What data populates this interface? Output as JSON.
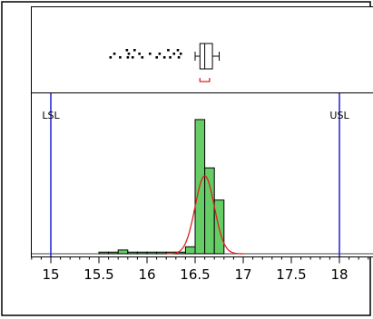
{
  "chart_data": {
    "type": "bar",
    "xlabel": "",
    "ylabel": "",
    "xlim": [
      14.7,
      18.35
    ],
    "x_ticks": [
      15,
      15.5,
      16,
      16.5,
      17,
      17.5,
      18
    ],
    "x_tick_labels": [
      "15",
      "15.5",
      "16",
      "16.5",
      "17",
      "17.5",
      "18"
    ],
    "grid": false,
    "spec_limits": [
      {
        "name": "LSL",
        "value": 15
      },
      {
        "name": "USL",
        "value": 18
      }
    ],
    "histogram": {
      "bin_width": 0.1,
      "bins": [
        {
          "start": 15.5,
          "count": 0.3
        },
        {
          "start": 15.6,
          "count": 0.3
        },
        {
          "start": 15.7,
          "count": 0.7
        },
        {
          "start": 15.8,
          "count": 0.3
        },
        {
          "start": 15.9,
          "count": 0.3
        },
        {
          "start": 16.0,
          "count": 0.3
        },
        {
          "start": 16.1,
          "count": 0.3
        },
        {
          "start": 16.2,
          "count": 0.3
        },
        {
          "start": 16.3,
          "count": 0.3
        },
        {
          "start": 16.4,
          "count": 1.3
        },
        {
          "start": 16.5,
          "count": 25
        },
        {
          "start": 16.6,
          "count": 16
        },
        {
          "start": 16.7,
          "count": 10
        }
      ],
      "ylim": [
        0,
        26
      ],
      "bar_color": "#66cc66"
    },
    "normal_fit": {
      "mean": 16.6,
      "sd": 0.1,
      "peak": 14.5,
      "color": "#e02020"
    },
    "boxplot": {
      "q1": 16.55,
      "median": 16.6,
      "q3": 16.68,
      "whisker_low": 16.5,
      "whisker_high": 16.75,
      "shortest_half": [
        16.55,
        16.65
      ],
      "outliers": [
        {
          "x": 15.62,
          "row": 2
        },
        {
          "x": 15.66,
          "row": 1
        },
        {
          "x": 15.72,
          "row": 2
        },
        {
          "x": 15.79,
          "row": 0
        },
        {
          "x": 15.8,
          "row": 2
        },
        {
          "x": 15.81,
          "row": 1
        },
        {
          "x": 15.85,
          "row": 2
        },
        {
          "x": 15.87,
          "row": 0
        },
        {
          "x": 15.92,
          "row": 1
        },
        {
          "x": 15.95,
          "row": 2
        },
        {
          "x": 16.03,
          "row": 1
        },
        {
          "x": 16.1,
          "row": 2
        },
        {
          "x": 16.13,
          "row": 1
        },
        {
          "x": 16.18,
          "row": 2
        },
        {
          "x": 16.22,
          "row": 0
        },
        {
          "x": 16.24,
          "row": 2
        },
        {
          "x": 16.28,
          "row": 1
        },
        {
          "x": 16.32,
          "row": 0
        },
        {
          "x": 16.33,
          "row": 2
        },
        {
          "x": 16.35,
          "row": 1
        }
      ]
    }
  }
}
